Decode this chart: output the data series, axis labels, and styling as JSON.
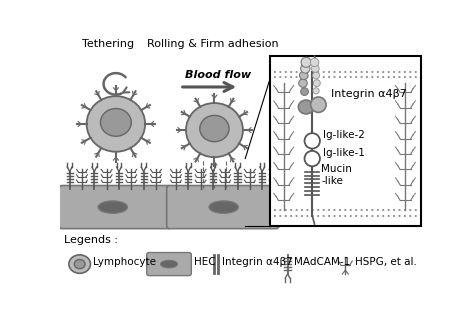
{
  "bg_color": "#ffffff",
  "gray_dark": "#666666",
  "gray_mid": "#999999",
  "gray_light": "#bbbbbb",
  "gray_lighter": "#d8d8d8",
  "gray_hec": "#aaaaaa",
  "gray_hec_edge": "#777777",
  "label_tethering": "Tethering",
  "label_rolling": "Rolling & Firm adhesion",
  "label_bloodflow": "Blood flow",
  "label_integrin": "Integrin α4β7",
  "label_iglike1": "Ig-like-1",
  "label_iglike2": "Ig-like-2",
  "label_mucin": "Mucin\n-like",
  "label_legends": "Legends :",
  "label_lymphocyte": "Lymphocyte",
  "label_hec": "HEC",
  "label_integrin_legend": "Integrin α4β7",
  "label_madcam": "MAdCAM-1",
  "label_hspg": "HSPG, et al."
}
